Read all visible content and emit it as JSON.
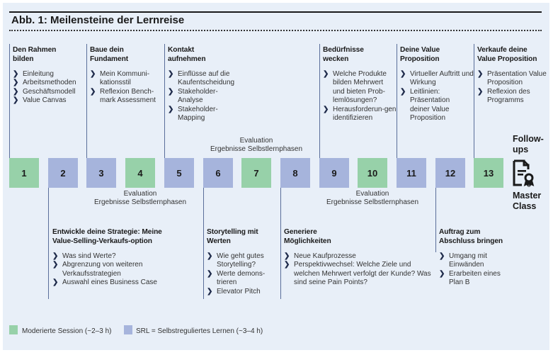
{
  "title": "Abb. 1: Meilensteine der Lernreise",
  "colors": {
    "moderated": "#97d1a9",
    "srl": "#a6b4dc",
    "background": "#e8eff8",
    "connector": "#5a6e9a"
  },
  "milestones": [
    {
      "number": "1",
      "type": "moderated"
    },
    {
      "number": "2",
      "type": "srl"
    },
    {
      "number": "3",
      "type": "srl"
    },
    {
      "number": "4",
      "type": "moderated"
    },
    {
      "number": "5",
      "type": "srl"
    },
    {
      "number": "6",
      "type": "srl"
    },
    {
      "number": "7",
      "type": "moderated"
    },
    {
      "number": "8",
      "type": "srl"
    },
    {
      "number": "9",
      "type": "srl"
    },
    {
      "number": "10",
      "type": "moderated"
    },
    {
      "number": "11",
      "type": "srl"
    },
    {
      "number": "12",
      "type": "srl"
    },
    {
      "number": "13",
      "type": "moderated"
    }
  ],
  "top_columns": [
    {
      "milestone": "1",
      "head": "Den Rahmen bilden",
      "items": [
        "Einleitung",
        "Arbeitsmethoden",
        "Geschäftsmodell",
        "Value Canvas"
      ]
    },
    {
      "milestone": "3",
      "head": "Baue dein Fundament",
      "items": [
        "Mein Kommuni-kationsstil",
        "Reflexion Bench-mark Assessment"
      ]
    },
    {
      "milestone": "5",
      "head": "Kontakt aufnehmen",
      "items": [
        "Einflüsse auf die Kaufentscheidung",
        "Stakeholder-Analyse",
        "Stakeholder-Mapping"
      ]
    },
    {
      "milestone": "9",
      "head": "Bedürfnisse wecken",
      "items": [
        "Welche Produkte bilden Mehrwert und bieten Prob-lemlösungen?",
        "Herausforderun-gen identifizieren"
      ]
    },
    {
      "milestone": "11",
      "head": "Deine Value Proposition",
      "items": [
        "Virtueller Auftritt und Wirkung",
        "Leitlinien: Präsentation deiner Value Proposition"
      ]
    },
    {
      "milestone": "13",
      "head": "Verkaufe deine Value Proposition",
      "items": [
        "Präsentation Value Proposition",
        "Reflexion des Programms"
      ]
    }
  ],
  "bottom_columns": [
    {
      "milestone": "2",
      "head": "Entwickle deine Strategie: Meine Value-Selling-Verkaufs-option",
      "items": [
        "Was sind Werte?",
        "Abgrenzung von weiteren Verkaufsstrategien",
        "Auswahl eines Business Case"
      ]
    },
    {
      "milestone": "6",
      "head": "Storytelling mit Werten",
      "items": [
        "Wie geht gutes Storytelling?",
        "Werte demons-trieren",
        "Elevator Pitch"
      ]
    },
    {
      "milestone": "8",
      "head": "Generiere Möglichkeiten",
      "items": [
        "Neue Kaufprozesse",
        "Perspektivwechsel: Welche Ziele und welchen Mehrwert verfolgt der Kunde? Was sind seine Pain Points?"
      ]
    },
    {
      "milestone": "12",
      "head": "Auftrag zum Abschluss bringen",
      "items": [
        "Umgang mit Einwänden",
        "Erarbeiten eines Plan B"
      ]
    }
  ],
  "evaluations": [
    {
      "milestone": "4",
      "line1": "Evaluation",
      "line2": "Ergebnisse Selbstlernphasen"
    },
    {
      "milestone": "7",
      "line1": "Evaluation",
      "line2": "Ergebnisse Selbstlernphasen"
    },
    {
      "milestone": "10",
      "line1": "Evaluation",
      "line2": "Ergebnisse Selbstlernphasen"
    }
  ],
  "followups": {
    "label": "Follow-ups",
    "icon": "certificate-document-icon",
    "master_class": "Master Class"
  },
  "legend": [
    {
      "type": "moderated",
      "label": "Moderierte Session (~2–3 h)"
    },
    {
      "type": "srl",
      "label": "SRL = Selbstreguliertes Lernen (~3–4 h)"
    }
  ]
}
